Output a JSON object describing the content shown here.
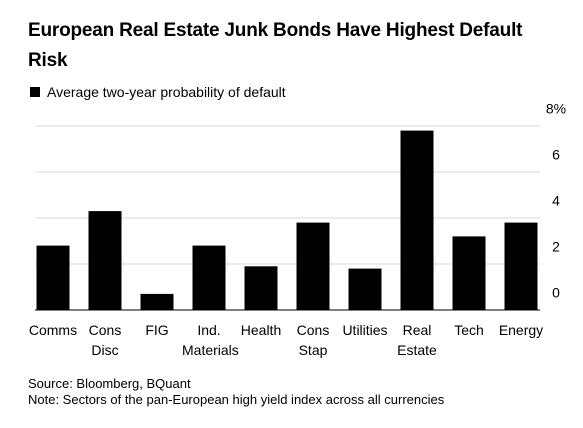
{
  "chart_data": {
    "type": "bar",
    "title": "European Real Estate Junk Bonds Have Highest Default Risk",
    "categories": [
      "Comms",
      "Cons Disc",
      "FIG",
      "Ind. Materials",
      "Health",
      "Cons Stap",
      "Utilities",
      "Real Estate",
      "Tech",
      "Energy"
    ],
    "series": [
      {
        "name": "Average two-year probability of default",
        "color": "#000000",
        "values": [
          2.8,
          4.3,
          0.7,
          2.8,
          1.9,
          3.8,
          1.8,
          7.8,
          3.2,
          3.8
        ]
      }
    ],
    "ylim": [
      0,
      8
    ],
    "yticks": [
      0,
      2,
      4,
      6,
      {
        "value": 8,
        "label": "8%"
      }
    ],
    "grid": true,
    "source": "Source: Bloomberg, BQuant",
    "note": "Note: Sectors of the pan-European high yield index across all currencies"
  }
}
